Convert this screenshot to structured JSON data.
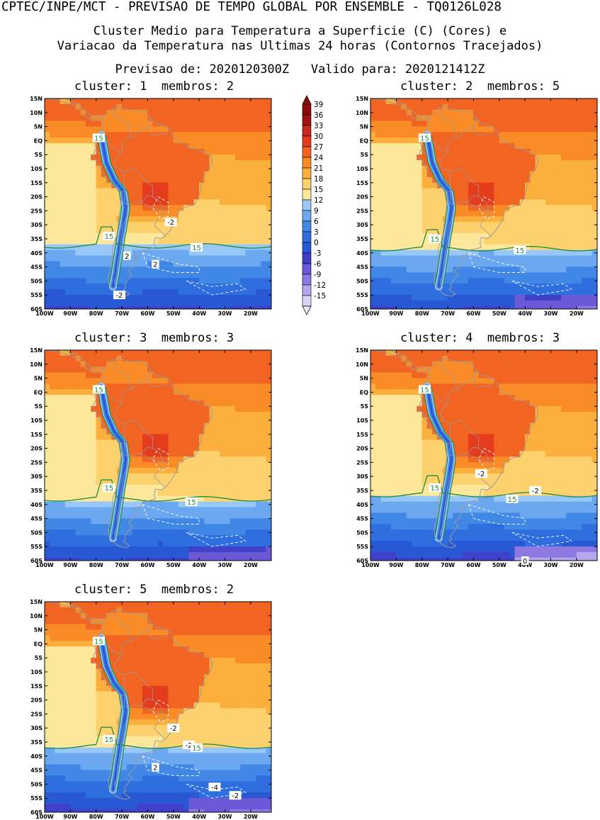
{
  "header": {
    "title": "CPTEC/INPE/MCT - PREVISAO DE TEMPO GLOBAL POR ENSEMBLE - TQ0126L028",
    "subtitle_line1": "Cluster Medio para Temperatura a Superficie (C) (Cores) e",
    "subtitle_line2": "Variacao da Temperatura nas Ultimas 24 horas (Contornos Tracejados)",
    "time_line": "Previsao de: 2020120300Z   Valido para: 2020121412Z"
  },
  "colors": {
    "levels": [
      {
        "min": 36,
        "color": "#a01414"
      },
      {
        "min": 33,
        "color": "#c8281e"
      },
      {
        "min": 30,
        "color": "#e63c1e"
      },
      {
        "min": 27,
        "color": "#f26422"
      },
      {
        "min": 24,
        "color": "#fa8c28"
      },
      {
        "min": 21,
        "color": "#fbaf3c"
      },
      {
        "min": 18,
        "color": "#fdd26e"
      },
      {
        "min": 15,
        "color": "#fde79a"
      },
      {
        "min": 12,
        "color": "#98c8f8"
      },
      {
        "min": 9,
        "color": "#6ca8f0"
      },
      {
        "min": 6,
        "color": "#4188e6"
      },
      {
        "min": 3,
        "color": "#2e6ede"
      },
      {
        "min": 0,
        "color": "#2858d4"
      },
      {
        "min": -3,
        "color": "#4040c8"
      },
      {
        "min": -6,
        "color": "#6a58d6"
      },
      {
        "min": -9,
        "color": "#8e78e2"
      },
      {
        "min": -12,
        "color": "#b6a6ee"
      },
      {
        "min": -15,
        "color": "#dcd4f8"
      }
    ],
    "contour15": "#1e8c3c",
    "country_border": "#9a9a9a",
    "anomaly_contour": "#ffffff"
  },
  "axes": {
    "lat_labels": [
      "15N",
      "10N",
      "5N",
      "EQ",
      "5S",
      "10S",
      "15S",
      "20S",
      "25S",
      "30S",
      "35S",
      "40S",
      "45S",
      "50S",
      "55S",
      "60S"
    ],
    "lon_labels": [
      "100W",
      "90W",
      "80W",
      "70W",
      "60W",
      "50W",
      "40W",
      "30W",
      "20W"
    ],
    "lat_range": [
      -60,
      15
    ],
    "lon_range": [
      -100,
      -12
    ]
  },
  "colorbar": {
    "labels": [
      "39",
      "36",
      "33",
      "30",
      "27",
      "24",
      "21",
      "18",
      "15",
      "12",
      "9",
      "6",
      "3",
      "0",
      "-3",
      "-6",
      "-9",
      "-12",
      "-15"
    ]
  },
  "panels": [
    {
      "id": "cluster-1",
      "title": "cluster: 1  membros: 2",
      "boundary_lat": -37.5,
      "cold_patch": 0,
      "labels": [
        {
          "text": "15",
          "lon": -79,
          "lat": 1,
          "green": true
        },
        {
          "text": "15",
          "lon": -75,
          "lat": -34,
          "green": true
        },
        {
          "text": "15",
          "lon": -41,
          "lat": -38,
          "green": true
        },
        {
          "text": "-2",
          "lon": -51,
          "lat": -29,
          "green": false
        },
        {
          "text": "2",
          "lon": -68,
          "lat": -41,
          "green": false
        },
        {
          "text": "2",
          "lon": -57,
          "lat": -44,
          "green": false
        },
        {
          "text": "-2",
          "lon": -71,
          "lat": -55,
          "green": false
        }
      ]
    },
    {
      "id": "cluster-2",
      "title": "cluster: 2  membros: 5",
      "boundary_lat": -38.5,
      "cold_patch": 0.5,
      "labels": [
        {
          "text": "15",
          "lon": -79,
          "lat": 1,
          "green": true
        },
        {
          "text": "15",
          "lon": -75,
          "lat": -35,
          "green": true
        },
        {
          "text": "15",
          "lon": -42,
          "lat": -39,
          "green": true
        }
      ]
    },
    {
      "id": "cluster-3",
      "title": "cluster: 3  membros: 3",
      "boundary_lat": -38,
      "cold_patch": 0.3,
      "labels": [
        {
          "text": "15",
          "lon": -79,
          "lat": 1,
          "green": true
        },
        {
          "text": "15",
          "lon": -75,
          "lat": -34,
          "green": true
        },
        {
          "text": "15",
          "lon": -43,
          "lat": -39,
          "green": true
        }
      ]
    },
    {
      "id": "cluster-4",
      "title": "cluster: 4  membros: 3",
      "boundary_lat": -36.5,
      "cold_patch": 1,
      "labels": [
        {
          "text": "15",
          "lon": -79,
          "lat": 1,
          "green": true
        },
        {
          "text": "15",
          "lon": -75,
          "lat": -34,
          "green": true
        },
        {
          "text": "15",
          "lon": -45,
          "lat": -38,
          "green": true
        },
        {
          "text": "-2",
          "lon": -57,
          "lat": -29,
          "green": false
        },
        {
          "text": "-2",
          "lon": -36,
          "lat": -35,
          "green": false
        },
        {
          "text": "0",
          "lon": -40,
          "lat": -60,
          "green": false
        }
      ]
    },
    {
      "id": "cluster-5",
      "title": "cluster: 5  membros: 2",
      "boundary_lat": -36.5,
      "cold_patch": 0.4,
      "labels": [
        {
          "text": "15",
          "lon": -79,
          "lat": 1,
          "green": true
        },
        {
          "text": "15",
          "lon": -75,
          "lat": -34,
          "green": true
        },
        {
          "text": "-2",
          "lon": -50,
          "lat": -30,
          "green": false
        },
        {
          "text": "-2",
          "lon": -44,
          "lat": -36,
          "green": false
        },
        {
          "text": "15",
          "lon": -41,
          "lat": -37,
          "green": true
        },
        {
          "text": "2",
          "lon": -57,
          "lat": -44,
          "green": false
        },
        {
          "text": "-4",
          "lon": -34,
          "lat": -51,
          "green": false
        },
        {
          "text": "-2",
          "lon": -26,
          "lat": -54,
          "green": false
        }
      ]
    }
  ]
}
